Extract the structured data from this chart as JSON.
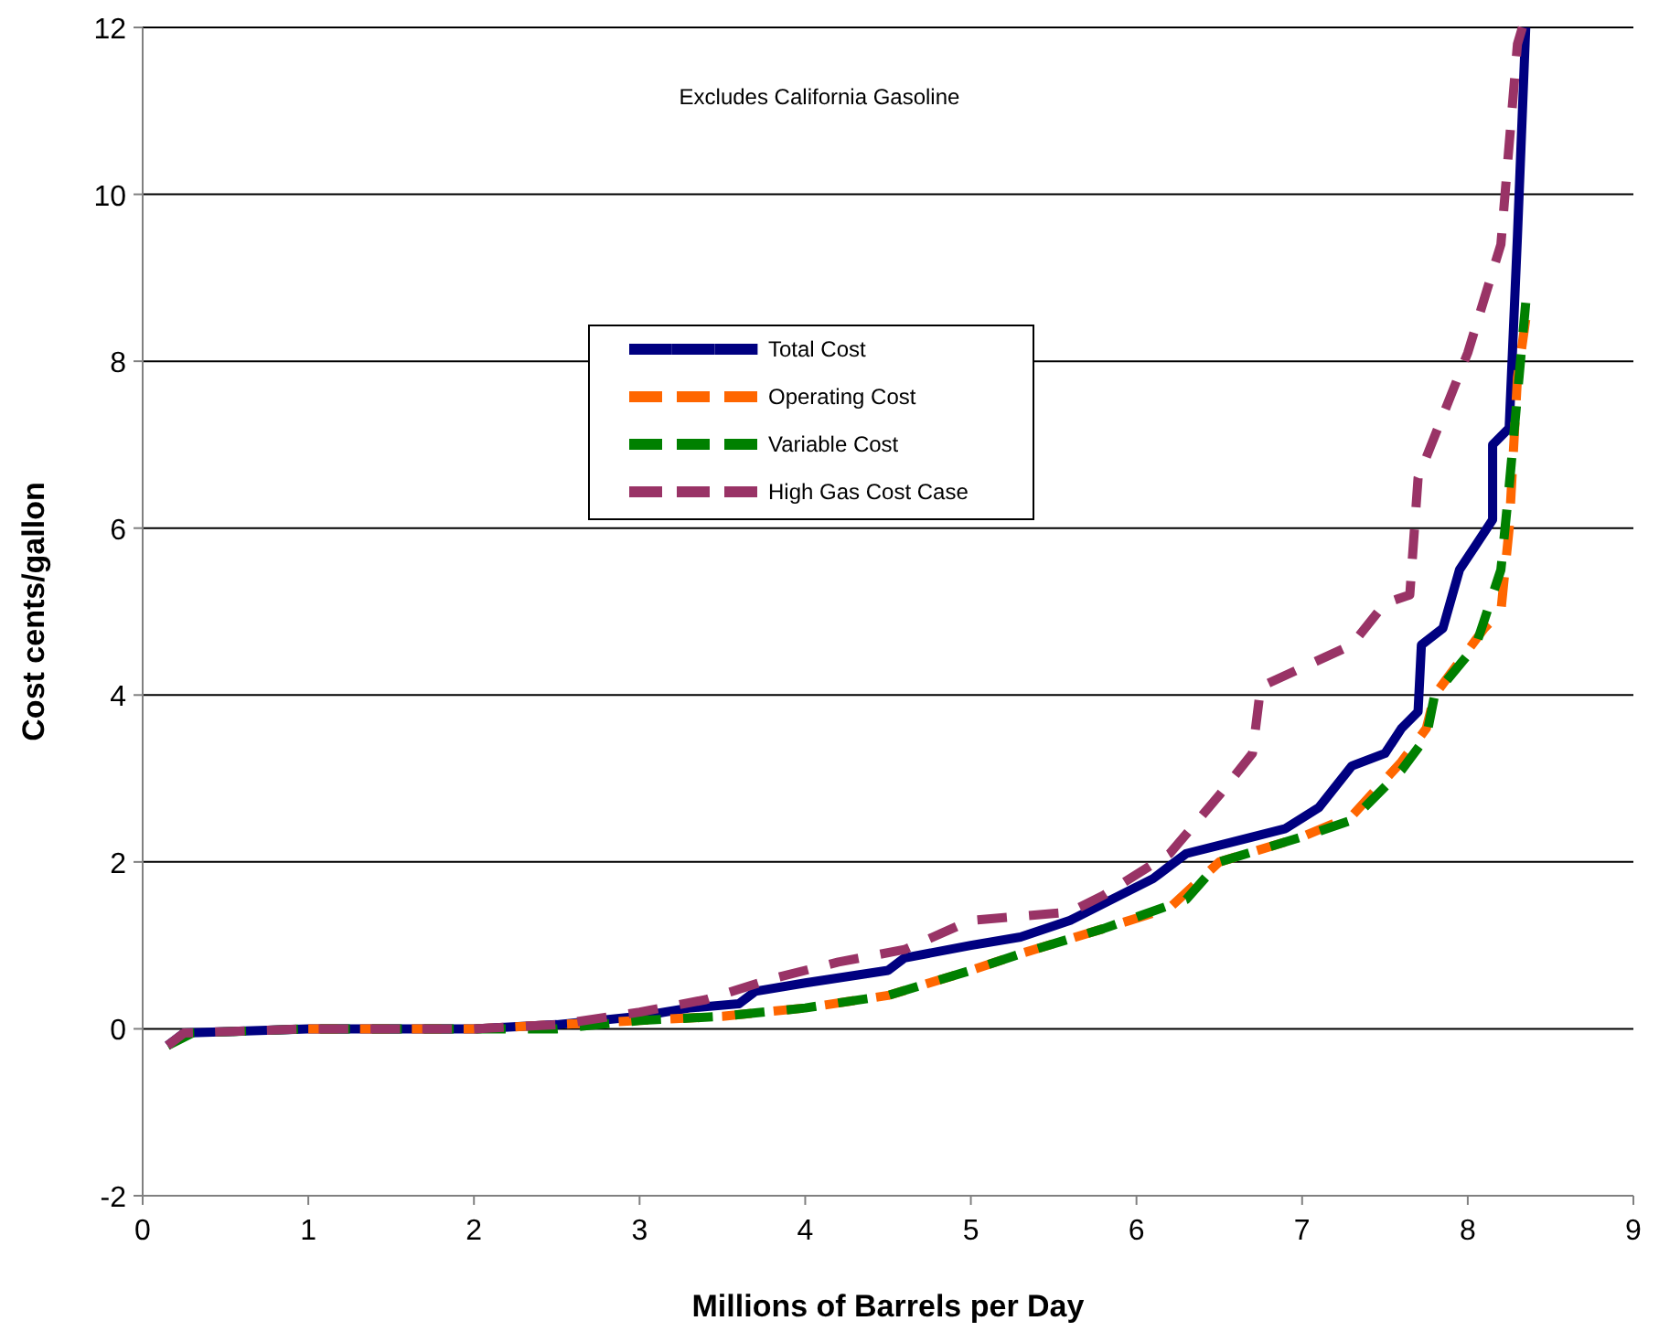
{
  "chart_data": {
    "type": "line",
    "xlabel": "Millions of Barrels per Day",
    "ylabel": "Cost cents/gallon",
    "annotations": [
      "Excludes California Gasoline"
    ],
    "xlim": [
      0,
      9
    ],
    "xticks": [
      0,
      1,
      2,
      3,
      4,
      5,
      6,
      7,
      8,
      9
    ],
    "ylim": [
      -2,
      12
    ],
    "yticks": [
      -2,
      0,
      2,
      4,
      6,
      8,
      10,
      12
    ],
    "grid": "y",
    "legend": "center",
    "marker": "none",
    "series": [
      {
        "name": "Total Cost",
        "color": "#000080",
        "line_style": "solid",
        "x": [
          0.15,
          0.25,
          1,
          2,
          2.5,
          3,
          3.3,
          3.6,
          3.7,
          4,
          4.5,
          4.6,
          5,
          5.3,
          5.6,
          5.9,
          6.1,
          6.3,
          6.6,
          6.9,
          7.1,
          7.3,
          7.5,
          7.6,
          7.7,
          7.72,
          7.85,
          7.95,
          8.05,
          8.15,
          8.15,
          8.25,
          8.3,
          8.35
        ],
        "values": [
          -0.2,
          -0.05,
          0,
          0,
          0.05,
          0.15,
          0.25,
          0.3,
          0.45,
          0.55,
          0.7,
          0.85,
          1.0,
          1.1,
          1.3,
          1.6,
          1.8,
          2.1,
          2.25,
          2.4,
          2.65,
          3.15,
          3.3,
          3.6,
          3.8,
          4.6,
          4.8,
          5.5,
          5.8,
          6.1,
          7.0,
          7.2,
          9.5,
          12
        ]
      },
      {
        "name": "Operating Cost",
        "color": "#ff6600",
        "line_style": "dashed",
        "x": [
          1,
          2,
          2.5,
          3,
          3.5,
          4,
          4.5,
          5,
          5.3,
          5.8,
          6.2,
          6.5,
          7,
          7.3,
          7.6,
          7.75,
          7.8,
          8.1,
          8.2,
          8.25,
          8.3,
          8.35
        ],
        "values": [
          0,
          0,
          0.05,
          0.1,
          0.15,
          0.25,
          0.4,
          0.7,
          0.9,
          1.2,
          1.45,
          2.0,
          2.3,
          2.55,
          3.2,
          3.6,
          4.0,
          4.8,
          5.0,
          6.0,
          7.8,
          8.5
        ]
      },
      {
        "name": "Variable Cost",
        "color": "#008000",
        "line_style": "dashed",
        "x": [
          0.15,
          0.3,
          1,
          2,
          2.5,
          3,
          3.5,
          4,
          4.5,
          5,
          5.3,
          5.8,
          6.3,
          6.5,
          7,
          7.3,
          7.6,
          7.75,
          7.8,
          8.05,
          8.2,
          8.25,
          8.35
        ],
        "values": [
          -0.2,
          -0.05,
          0,
          0,
          0,
          0.1,
          0.15,
          0.25,
          0.4,
          0.7,
          0.9,
          1.2,
          1.55,
          2.0,
          2.3,
          2.5,
          3.1,
          3.5,
          4.0,
          4.6,
          5.5,
          6.5,
          8.7
        ]
      },
      {
        "name": "High Gas Cost Case",
        "color": "#993366",
        "line_style": "dashed",
        "x": [
          0.15,
          0.25,
          1,
          2,
          2.5,
          3,
          3.4,
          3.8,
          4.2,
          4.6,
          5,
          5.6,
          5.8,
          6.2,
          6.5,
          6.7,
          6.75,
          7.3,
          7.5,
          7.65,
          7.7,
          8.0,
          8.2,
          8.3,
          8.33
        ],
        "values": [
          -0.2,
          -0.05,
          0,
          0,
          0.05,
          0.2,
          0.35,
          0.6,
          0.8,
          0.95,
          1.3,
          1.4,
          1.6,
          2.1,
          2.8,
          3.3,
          4.1,
          4.6,
          5.1,
          5.2,
          6.6,
          8.1,
          9.4,
          11.8,
          12
        ]
      }
    ]
  }
}
